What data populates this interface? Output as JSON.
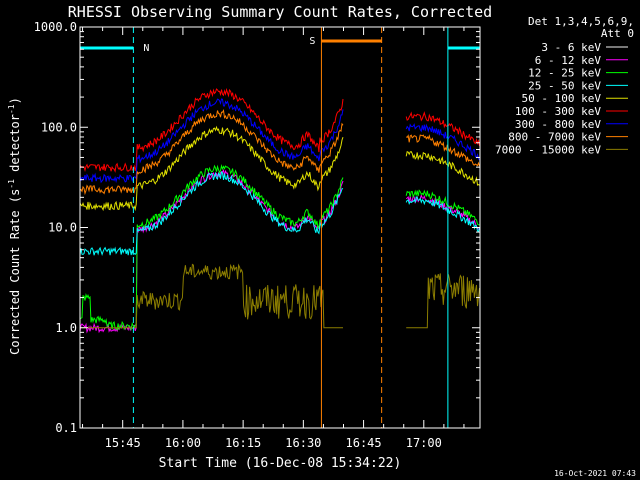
{
  "chart_data": {
    "type": "line",
    "title": "RHESSI Observing Summary Count Rates, Corrected",
    "xlabel": "Start Time (16-Dec-08 15:34:22)",
    "ylabel": "Corrected Count Rate (s⁻¹ detector⁻¹)",
    "ylabel_prefix": "Corrected Count Rate (s",
    "ylabel_mid": " detector",
    "ylabel_suffix": ")",
    "ylabel_exp": "-1",
    "y_scale": "log",
    "ylim": [
      0.1,
      1000
    ],
    "yticks": [
      "0.1",
      "1.0",
      "10.0",
      "100.0",
      "1000.0"
    ],
    "xlim": [
      "15:34:22",
      "17:14:00"
    ],
    "xticks": [
      "15:45",
      "16:00",
      "16:15",
      "16:30",
      "16:45",
      "17:00"
    ],
    "legend_header": [
      "Det 1,3,4,5,6,9,",
      "Att 0"
    ],
    "legend_placement": "right",
    "footer_date": "16-Oct-2021 07:43",
    "annotations": [
      {
        "text": "N",
        "color": "#00ffff"
      },
      {
        "text": "S",
        "color": "#ff8000"
      }
    ],
    "series": [
      {
        "name": "3 - 6 keV",
        "color": "#000000",
        "display_color": "#f0f0f0",
        "line_color": "#000000"
      },
      {
        "name": "6 - 12 keV",
        "color": "#ff00ff"
      },
      {
        "name": "12 - 25 keV",
        "color": "#00ff00"
      },
      {
        "name": "25 - 50 keV",
        "color": "#00ffff"
      },
      {
        "name": "50 - 100 keV",
        "color": "#e0e000"
      },
      {
        "name": "100 - 300 keV",
        "color": "#ff0000"
      },
      {
        "name": "300 - 800 keV",
        "color": "#0000ff"
      },
      {
        "name": "800 - 7000 keV",
        "color": "#ff8000"
      },
      {
        "name": "7000 - 15000 keV",
        "color": "#8b7d00"
      }
    ],
    "night_intervals": [
      [
        "15:34:22",
        "15:47:40"
      ],
      [
        "17:06:00",
        "17:14:00"
      ]
    ],
    "saa_interval": [
      "16:34:30",
      "16:49:30"
    ],
    "data_gap": [
      "16:40:00",
      "16:55:30"
    ]
  }
}
